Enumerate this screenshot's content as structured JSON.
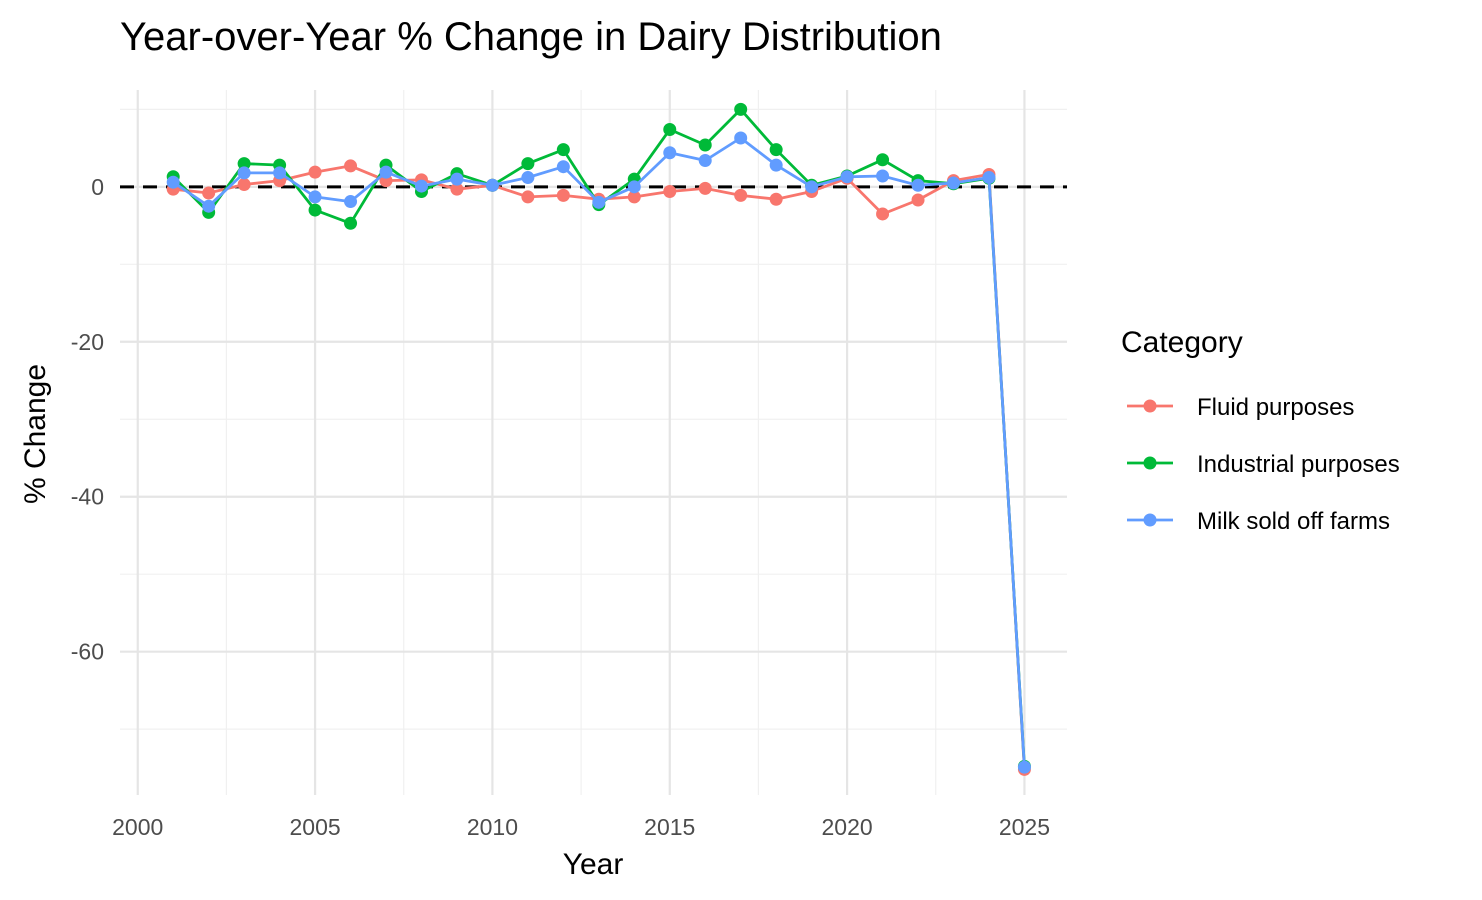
{
  "chart_data": {
    "type": "line",
    "title": "Year-over-Year % Change in Dairy Distribution",
    "xlabel": "Year",
    "ylabel": "% Change",
    "xlim": [
      1999.5,
      2026.2
    ],
    "ylim": [
      -78.5,
      12.5
    ],
    "x_ticks": [
      2000,
      2005,
      2010,
      2015,
      2020,
      2025
    ],
    "y_ticks": [
      0,
      -20,
      -40,
      -60
    ],
    "x_tick_labels": [
      "2000",
      "2005",
      "2010",
      "2015",
      "2020",
      "2025"
    ],
    "y_tick_labels": [
      "0",
      "-20",
      "-40",
      "-60"
    ],
    "reference_line": {
      "y": 0,
      "style": "dashed",
      "color": "#000000"
    },
    "grid": true,
    "legend": {
      "title": "Category",
      "position": "right"
    },
    "x": [
      2001,
      2002,
      2003,
      2004,
      2005,
      2006,
      2007,
      2008,
      2009,
      2010,
      2011,
      2012,
      2013,
      2014,
      2015,
      2016,
      2017,
      2018,
      2019,
      2020,
      2021,
      2022,
      2023,
      2024,
      2025
    ],
    "series": [
      {
        "name": "Fluid purposes",
        "color": "#F8766D",
        "values": [
          -0.3,
          -0.8,
          0.3,
          0.8,
          1.9,
          2.7,
          0.8,
          0.9,
          -0.3,
          0.2,
          -1.3,
          -1.1,
          -1.6,
          -1.3,
          -0.6,
          -0.2,
          -1.1,
          -1.6,
          -0.6,
          1.1,
          -3.5,
          -1.7,
          0.8,
          1.6,
          -75.2
        ]
      },
      {
        "name": "Industrial purposes",
        "color": "#00BA38",
        "values": [
          1.3,
          -3.3,
          3.0,
          2.8,
          -3.0,
          -4.7,
          2.8,
          -0.6,
          1.7,
          0.2,
          3.0,
          4.8,
          -2.3,
          1.0,
          7.4,
          5.4,
          10.0,
          4.8,
          0.2,
          1.4,
          3.5,
          0.8,
          0.4,
          1.1,
          -74.8
        ]
      },
      {
        "name": "Milk sold off farms",
        "color": "#619CFF",
        "values": [
          0.6,
          -2.5,
          1.8,
          1.8,
          -1.3,
          -1.9,
          1.9,
          0.1,
          1.0,
          0.2,
          1.2,
          2.6,
          -2.0,
          0.0,
          4.4,
          3.4,
          6.3,
          2.8,
          0.0,
          1.3,
          1.4,
          0.2,
          0.5,
          1.2,
          -74.9
        ]
      }
    ]
  }
}
